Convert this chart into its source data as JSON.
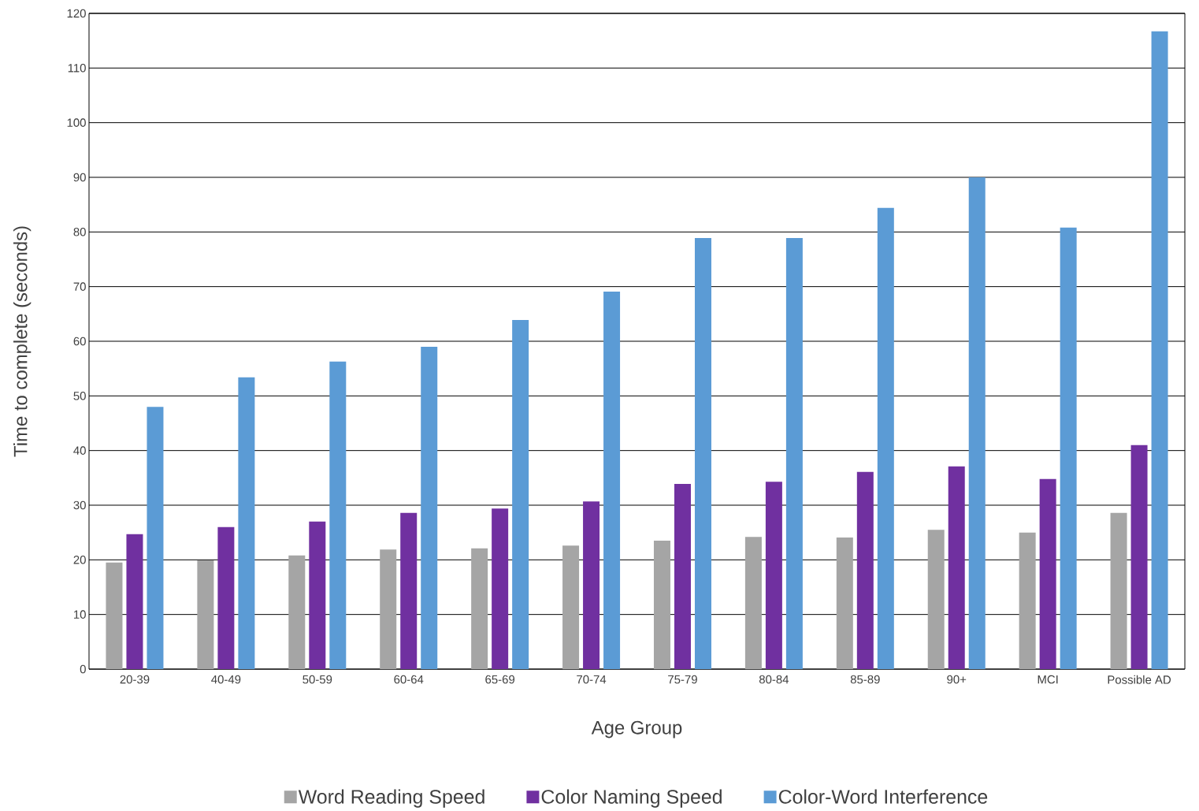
{
  "chart_data": {
    "type": "bar",
    "xlabel": "Age Group",
    "ylabel": "Time to complete (seconds)",
    "categories": [
      "20-39",
      "40-49",
      "50-59",
      "60-64",
      "65-69",
      "70-74",
      "75-79",
      "80-84",
      "85-89",
      "90+",
      "MCI",
      "Possible AD"
    ],
    "series": [
      {
        "name": "Word Reading Speed",
        "color": "#a5a5a5",
        "values": [
          19.5,
          19.9,
          20.8,
          21.9,
          22.1,
          22.6,
          23.5,
          24.2,
          24.1,
          25.5,
          25.0,
          28.6
        ]
      },
      {
        "name": "Color Naming Speed",
        "color": "#7030a0",
        "values": [
          24.7,
          26.0,
          27.0,
          28.6,
          29.4,
          30.7,
          33.9,
          34.3,
          36.1,
          37.1,
          34.8,
          41.0
        ]
      },
      {
        "name": "Color-Word Interference",
        "color": "#5b9bd5",
        "values": [
          48.0,
          53.4,
          56.3,
          59.0,
          63.9,
          69.1,
          78.9,
          78.9,
          84.4,
          90.0,
          80.8,
          116.7
        ]
      }
    ],
    "ylim": [
      0,
      120
    ],
    "yticks": [
      0,
      10,
      20,
      30,
      40,
      50,
      60,
      70,
      80,
      90,
      100,
      110,
      120
    ],
    "grid": "y",
    "legend": "bottom"
  }
}
